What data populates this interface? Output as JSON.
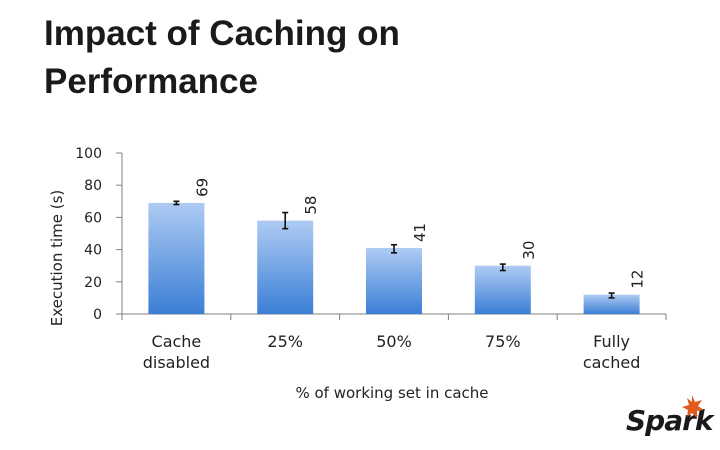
{
  "slide": {
    "title": "Impact of Caching on Performance",
    "logo_text": "Spark",
    "logo_star_color": "#e25a1c"
  },
  "chart_data": {
    "type": "bar",
    "title": "",
    "xlabel": "% of working set in cache",
    "ylabel": "Execution time (s)",
    "ylim": [
      0,
      100
    ],
    "yticks": [
      0,
      20,
      40,
      60,
      80,
      100
    ],
    "categories": [
      "Cache disabled",
      "25%",
      "50%",
      "75%",
      "Fully cached"
    ],
    "values": [
      69,
      58,
      41,
      30,
      12
    ],
    "error_bars": [
      [
        68,
        70
      ],
      [
        53,
        63
      ],
      [
        38,
        43
      ],
      [
        27,
        31
      ],
      [
        10,
        13
      ]
    ],
    "grid": false,
    "legend": "none",
    "colors": {
      "bar_top": "#aecbf3",
      "bar_bottom": "#3b7fd6",
      "axis": "#808080"
    }
  }
}
